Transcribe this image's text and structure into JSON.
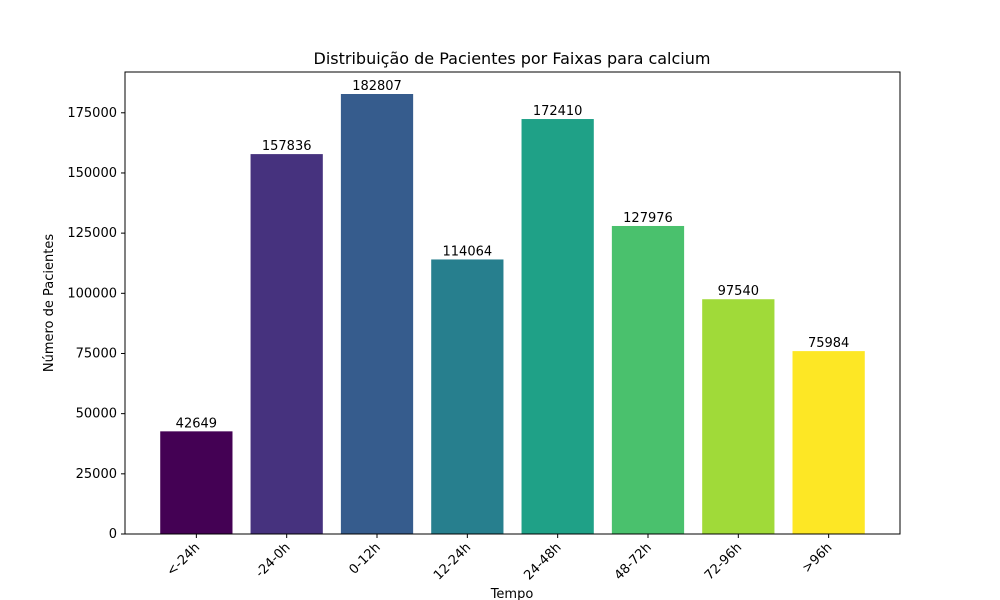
{
  "chart_data": {
    "type": "bar",
    "title": "Distribuição de Pacientes por Faixas para calcium",
    "xlabel": "Tempo",
    "ylabel": "Número de Pacientes",
    "categories": [
      "<-24h",
      "-24-0h",
      "0-12h",
      "12-24h",
      "24-48h",
      "48-72h",
      "72-96h",
      ">96h"
    ],
    "values": [
      42649,
      157836,
      182807,
      114064,
      172410,
      127976,
      97540,
      75984
    ],
    "colors": [
      "#440154",
      "#46327e",
      "#365c8d",
      "#277f8e",
      "#1fa187",
      "#4ac16d",
      "#a0da39",
      "#fde725"
    ],
    "ylim": [
      0,
      191947
    ],
    "yticks": [
      0,
      25000,
      50000,
      75000,
      100000,
      125000,
      150000,
      175000
    ],
    "grid": false
  }
}
